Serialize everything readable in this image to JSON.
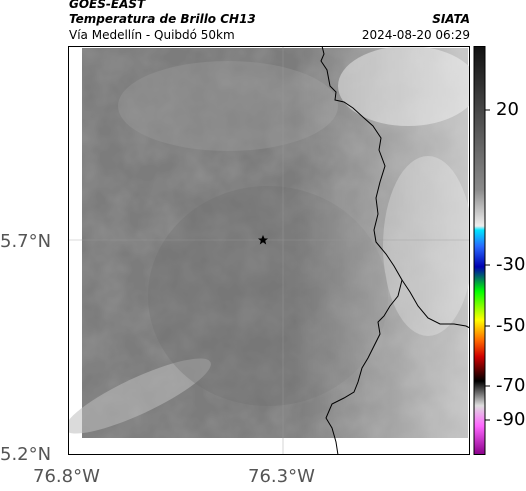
{
  "header": {
    "satellite": "GOES-EAST",
    "product": "Temperatura de Brillo CH13",
    "route": "Vía Medellín - Quibdó 50km",
    "organization": "SIATA",
    "timestamp": "2024-08-20 06:29"
  },
  "map": {
    "lat_ticks": [
      "5.7°N",
      "5.2°N"
    ],
    "lon_ticks": [
      "76.8°W",
      "76.3°W"
    ],
    "marker_icon": "star-icon",
    "border_color": "#000000",
    "gridline_color": "#9a9a9a"
  },
  "colorbar": {
    "ticks": [
      "20",
      "-30",
      "-50",
      "-70",
      "-90"
    ],
    "colors": [
      "#1a1a1a",
      "#8a8a8a",
      "#e8e8e8",
      "#00e5ff",
      "#0000b0",
      "#00ff00",
      "#ffff00",
      "#ff6a00",
      "#d00000",
      "#000000",
      "#dddddd",
      "#ff66ff",
      "#8a008a"
    ]
  }
}
